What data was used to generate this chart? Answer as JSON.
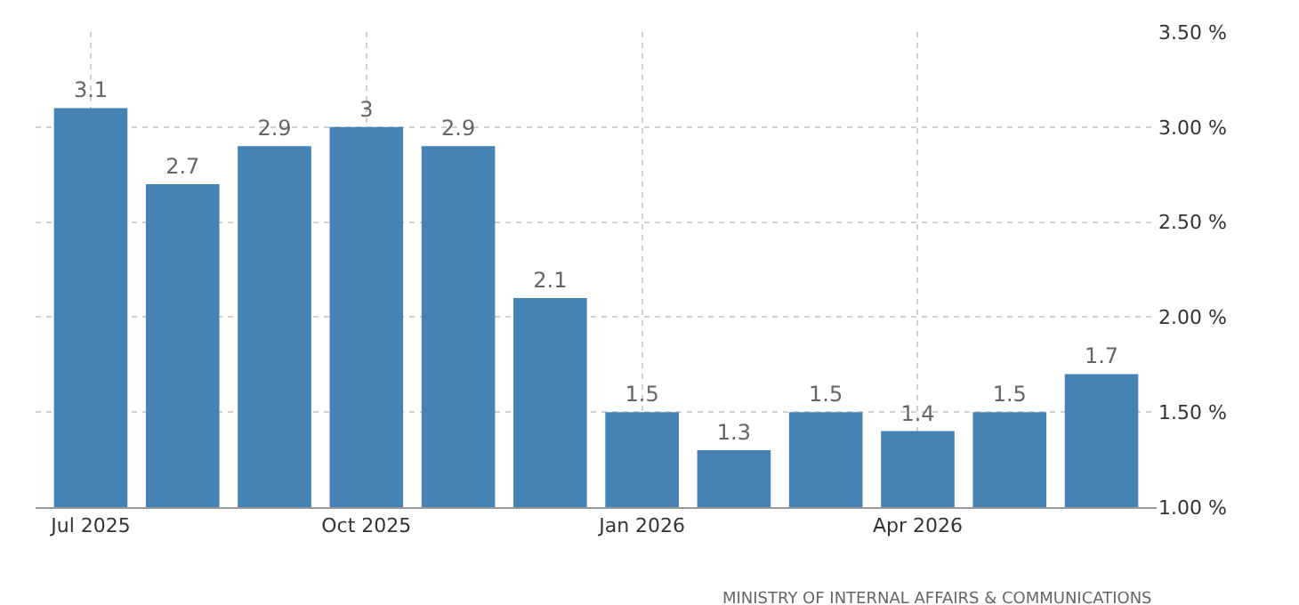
{
  "chart_data": {
    "type": "bar",
    "categories": [
      "Jul 2025",
      null,
      null,
      "Oct 2025",
      null,
      null,
      "Jan 2026",
      null,
      null,
      "Apr 2026",
      null,
      null
    ],
    "values": [
      3.1,
      2.7,
      2.9,
      3,
      2.9,
      2.1,
      1.5,
      1.3,
      1.5,
      1.4,
      1.5,
      1.7
    ],
    "color": "#4682b4",
    "ylim": [
      1,
      3.5
    ],
    "yticks": [
      {
        "value": 1,
        "label": "1.00 %"
      },
      {
        "value": 1.5,
        "label": "1.50 %"
      },
      {
        "value": 2,
        "label": "2.00 %"
      },
      {
        "value": 2.5,
        "label": "2.50 %"
      },
      {
        "value": 3,
        "label": "3.00 %"
      },
      {
        "value": 3.5,
        "label": "3.50 %"
      }
    ],
    "grid": true,
    "data_labels": true,
    "annotations": [
      "MINISTRY OF INTERNAL AFFAIRS & COMMUNICATIONS"
    ]
  }
}
